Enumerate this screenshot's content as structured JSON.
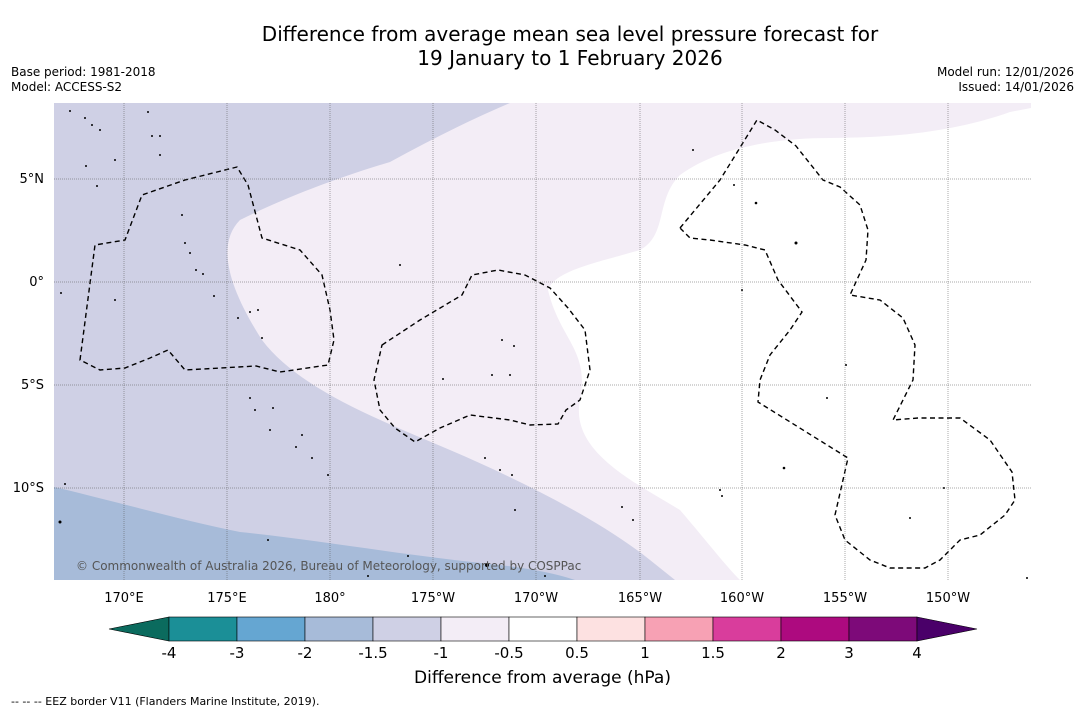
{
  "title": {
    "line1": "Difference from average mean sea level pressure forecast for",
    "line2": "19 January to 1 February 2026"
  },
  "meta": {
    "base_period": "Base period: 1981-2018",
    "model": "Model: ACCESS-S2",
    "model_run": "Model run: 12/01/2026",
    "issued": "Issued: 14/01/2026"
  },
  "map": {
    "lon_labels": [
      "170°E",
      "175°E",
      "180°",
      "175°W",
      "170°W",
      "165°W",
      "160°W",
      "155°W",
      "150°W"
    ],
    "lat_labels": [
      "5°N",
      "0°",
      "5°S",
      "10°S"
    ],
    "copyright": "© Commonwealth of Australia 2026, Bureau of Meteorology, supported by COSPPac",
    "colors": {
      "lt_minus_2": "#a7bbd9",
      "minus_1_5": "#cfd0e5",
      "minus_1": "#f3edf6",
      "neutral": "#ffffff",
      "eez_border": "#000000"
    }
  },
  "colorbar": {
    "ticks": [
      "-4",
      "-3",
      "-2",
      "-1.5",
      "-1",
      "-0.5",
      "0.5",
      "1",
      "1.5",
      "2",
      "3",
      "4"
    ],
    "colors": [
      "#0b6b5e",
      "#1b8f97",
      "#65a6d2",
      "#a7bbd9",
      "#cfd0e5",
      "#f3edf6",
      "#ffffff",
      "#fde1e1",
      "#f7a1b4",
      "#d93d9c",
      "#ad0a7f",
      "#7d0a79",
      "#4a0069"
    ],
    "label": "Difference from average (hPa)"
  },
  "footnote": "--  --  -- EEZ border V11 (Flanders Marine Institute, 2019)."
}
